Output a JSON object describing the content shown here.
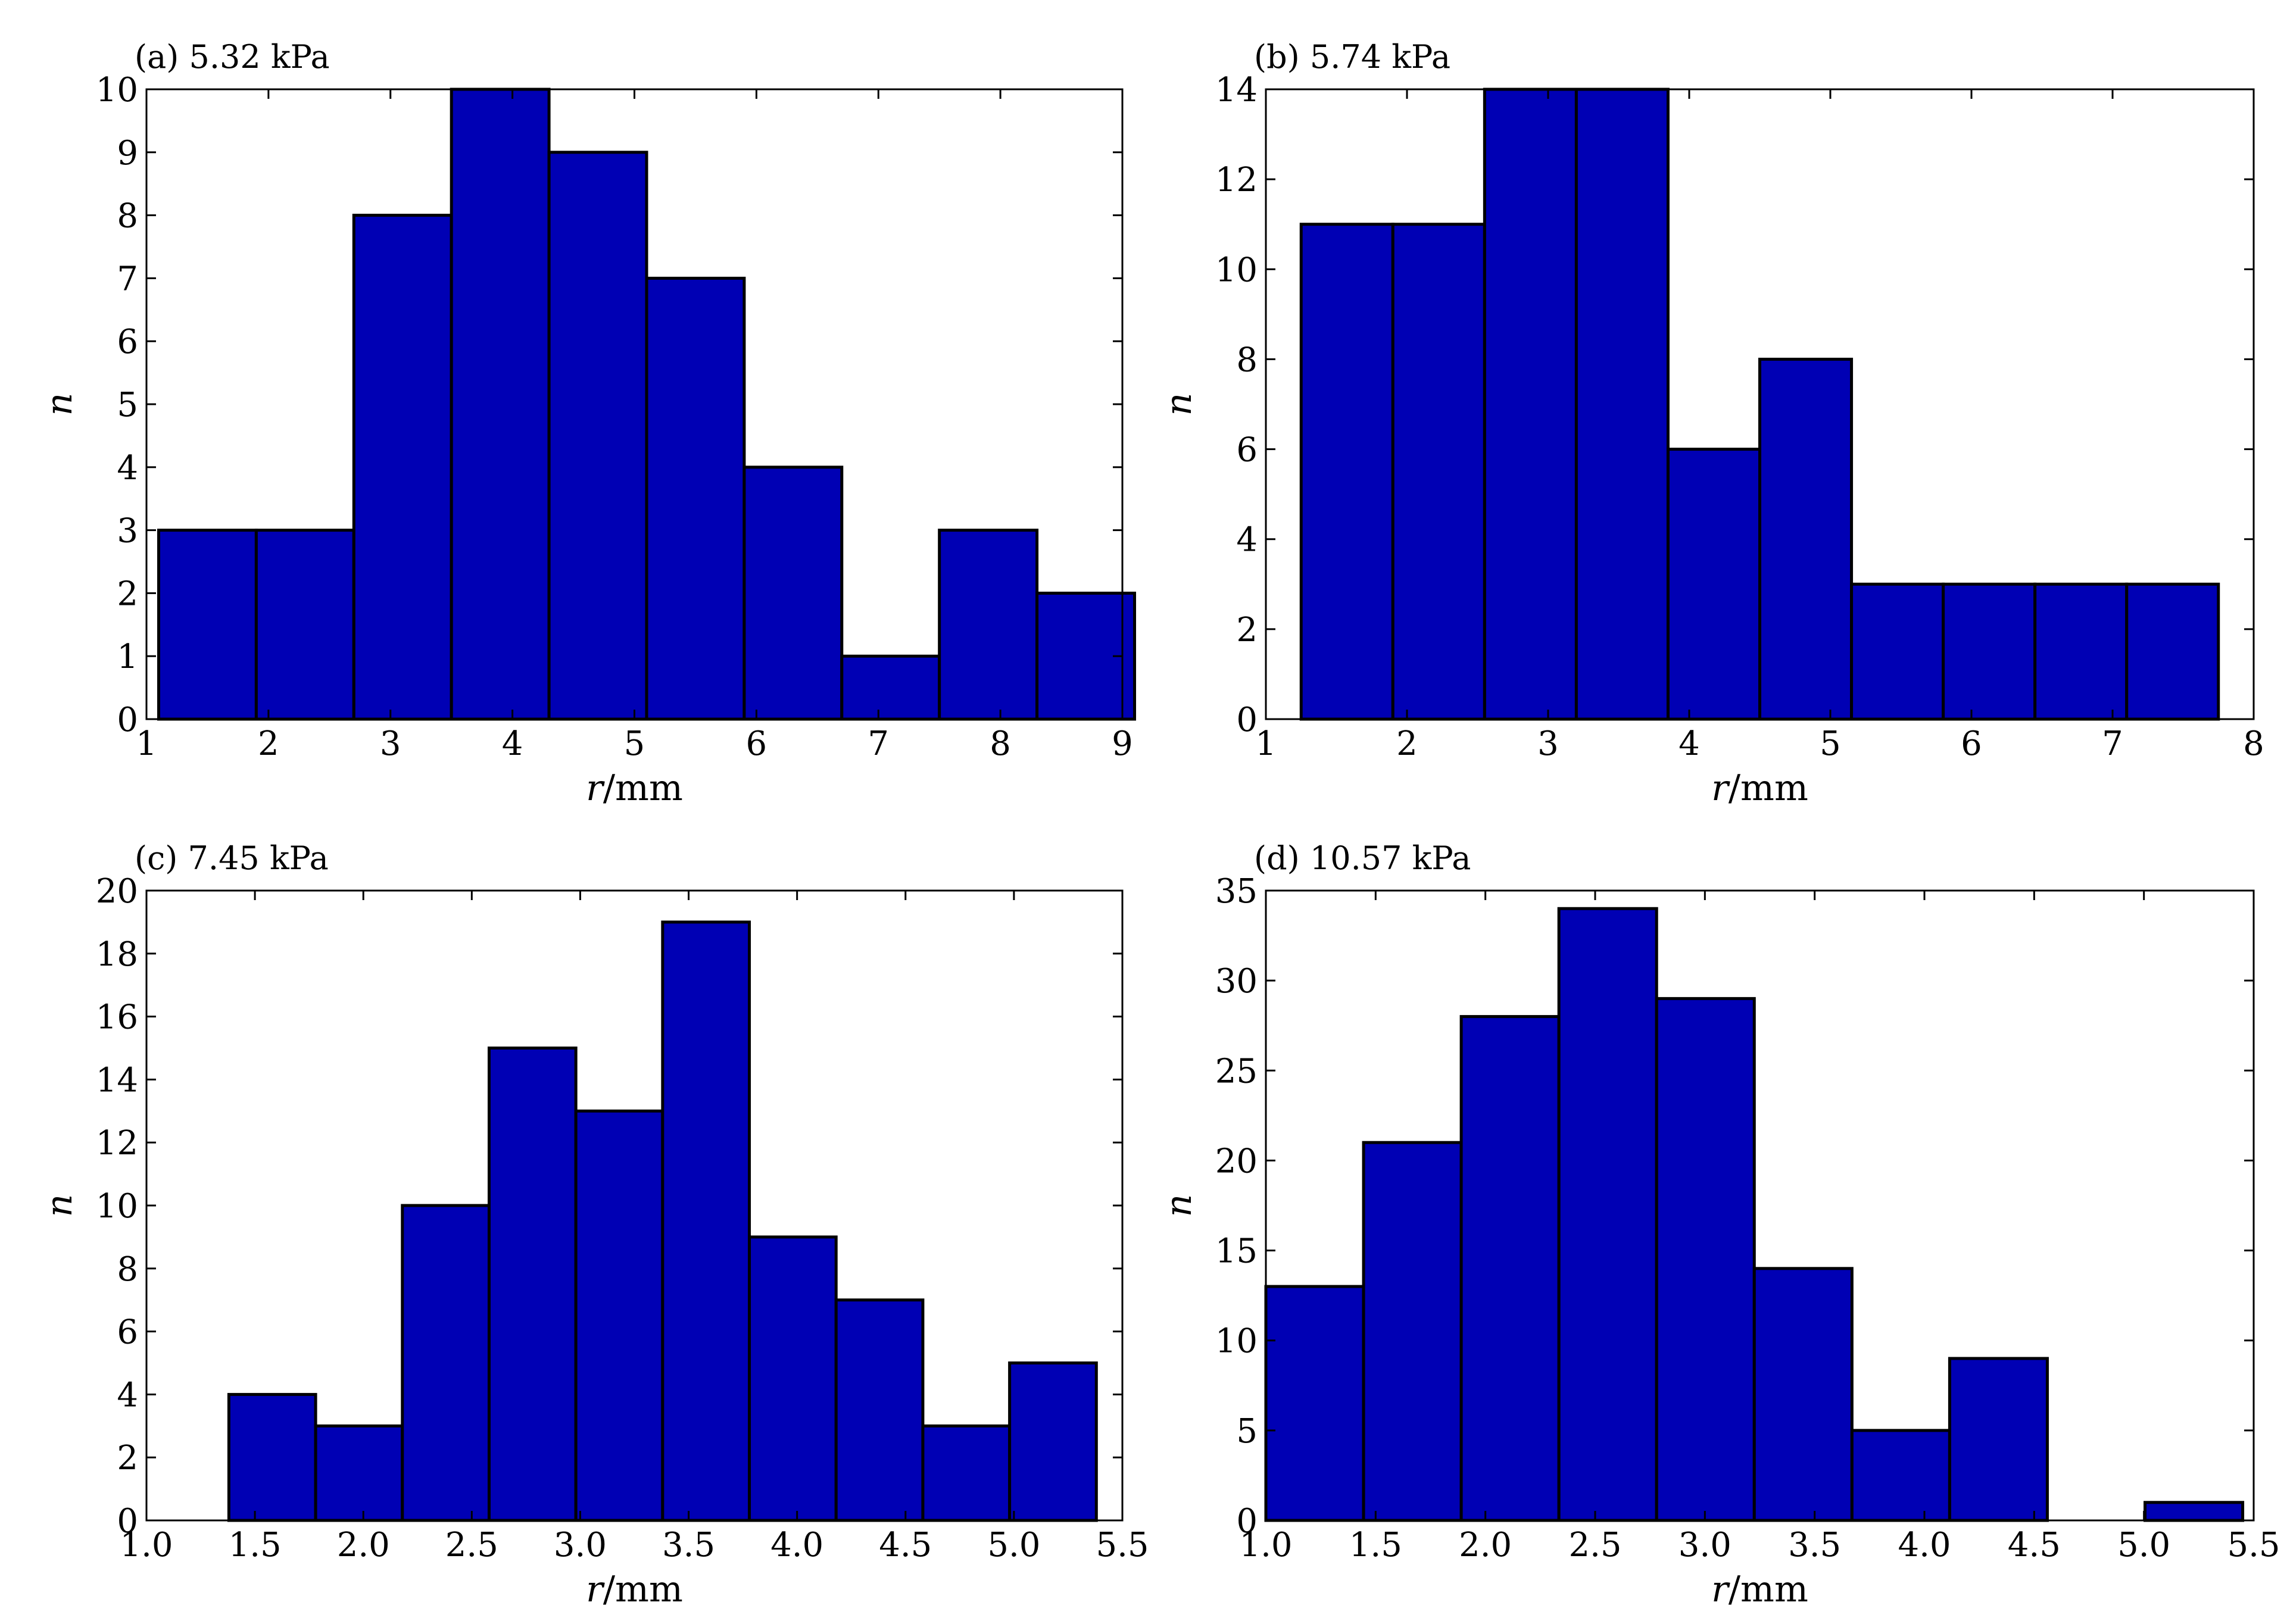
{
  "figure": {
    "kind": "histogram grid"
  },
  "colors": {
    "bar_fill": "#0000b4",
    "bar_edge": "#000000",
    "axes": "#000000",
    "background": "#ffffff"
  },
  "chart_data": [
    {
      "id": "a",
      "type": "bar",
      "title": "(a) 5.32 kPa",
      "xlabel_var": "r",
      "xlabel_unit": "/mm",
      "ylabel": "n",
      "xlim": [
        1,
        9
      ],
      "ylim": [
        0,
        10
      ],
      "xticks": [
        1,
        2,
        3,
        4,
        5,
        6,
        7,
        8,
        9
      ],
      "xtick_labels": [
        "1",
        "2",
        "3",
        "4",
        "5",
        "6",
        "7",
        "8",
        "9"
      ],
      "yticks": [
        0,
        1,
        2,
        3,
        4,
        5,
        6,
        7,
        8,
        9,
        10
      ],
      "ytick_labels": [
        "0",
        "1",
        "2",
        "3",
        "4",
        "5",
        "6",
        "7",
        "8",
        "9",
        "10"
      ],
      "bin_edges": [
        1.1,
        1.9,
        2.7,
        3.5,
        4.3,
        5.1,
        5.9,
        6.7,
        7.5,
        8.3,
        9.1
      ],
      "values": [
        3,
        3,
        8,
        10,
        9,
        7,
        4,
        1,
        3,
        2
      ],
      "grid": false
    },
    {
      "id": "b",
      "type": "bar",
      "title": "(b) 5.74 kPa",
      "xlabel_var": "r",
      "xlabel_unit": "/mm",
      "ylabel": "n",
      "xlim": [
        1,
        8
      ],
      "ylim": [
        0,
        14
      ],
      "xticks": [
        1,
        2,
        3,
        4,
        5,
        6,
        7,
        8
      ],
      "xtick_labels": [
        "1",
        "2",
        "3",
        "4",
        "5",
        "6",
        "7",
        "8"
      ],
      "yticks": [
        0,
        2,
        4,
        6,
        8,
        10,
        12,
        14
      ],
      "ytick_labels": [
        "0",
        "2",
        "4",
        "6",
        "8",
        "10",
        "12",
        "14"
      ],
      "bin_edges": [
        1.25,
        1.9,
        2.55,
        3.2,
        3.85,
        4.5,
        5.15,
        5.8,
        6.45,
        7.1,
        7.75
      ],
      "values": [
        11,
        11,
        14,
        14,
        6,
        8,
        3,
        3,
        3,
        3
      ],
      "grid": false
    },
    {
      "id": "c",
      "type": "bar",
      "title": "(c) 7.45 kPa",
      "xlabel_var": "r",
      "xlabel_unit": "/mm",
      "ylabel": "n",
      "xlim": [
        1.0,
        5.5
      ],
      "ylim": [
        0,
        20
      ],
      "xticks": [
        1.0,
        1.5,
        2.0,
        2.5,
        3.0,
        3.5,
        4.0,
        4.5,
        5.0,
        5.5
      ],
      "xtick_labels": [
        "1.0",
        "1.5",
        "2.0",
        "2.5",
        "3.0",
        "3.5",
        "4.0",
        "4.5",
        "5.0",
        "5.5"
      ],
      "yticks": [
        0,
        2,
        4,
        6,
        8,
        10,
        12,
        14,
        16,
        18,
        20
      ],
      "ytick_labels": [
        "0",
        "2",
        "4",
        "6",
        "8",
        "10",
        "12",
        "14",
        "16",
        "18",
        "20"
      ],
      "bin_edges": [
        1.38,
        1.78,
        2.18,
        2.58,
        2.98,
        3.38,
        3.78,
        4.18,
        4.58,
        4.98,
        5.38
      ],
      "values": [
        4,
        3,
        10,
        15,
        13,
        19,
        9,
        7,
        3,
        5
      ],
      "grid": false
    },
    {
      "id": "d",
      "type": "bar",
      "title": "(d) 10.57 kPa",
      "xlabel_var": "r",
      "xlabel_unit": "/mm",
      "ylabel": "n",
      "xlim": [
        1.0,
        5.5
      ],
      "ylim": [
        0,
        35
      ],
      "xticks": [
        1.0,
        1.5,
        2.0,
        2.5,
        3.0,
        3.5,
        4.0,
        4.5,
        5.0,
        5.5
      ],
      "xtick_labels": [
        "1.0",
        "1.5",
        "2.0",
        "2.5",
        "3.0",
        "3.5",
        "4.0",
        "4.5",
        "5.0",
        "5.5"
      ],
      "yticks": [
        0,
        5,
        10,
        15,
        20,
        25,
        30,
        35
      ],
      "ytick_labels": [
        "0",
        "5",
        "10",
        "15",
        "20",
        "25",
        "30",
        "35"
      ],
      "bin_edges": [
        1.0,
        1.445,
        1.89,
        2.335,
        2.78,
        3.225,
        3.67,
        4.115,
        4.56,
        5.005,
        5.45
      ],
      "values": [
        13,
        21,
        28,
        34,
        29,
        14,
        5,
        9,
        0,
        1
      ],
      "grid": false
    }
  ]
}
